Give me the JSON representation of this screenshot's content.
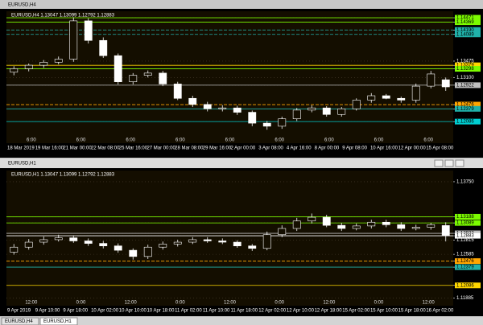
{
  "chart_data": [
    {
      "type": "candlestick",
      "window_title": "EURUSD,H4",
      "title": "EURUSD,H4 1.13047 1.13099 1.12792 1.12883",
      "open": [
        1.1322,
        1.133,
        1.1338,
        1.1345,
        1.1352,
        1.144,
        1.1395,
        1.136,
        1.13,
        1.1315,
        1.132,
        1.1295,
        1.1262,
        1.1248,
        1.1238,
        1.124,
        1.123,
        1.1205,
        1.1198,
        1.1215,
        1.1235,
        1.124,
        1.1225,
        1.1238,
        1.1258,
        1.1268,
        1.1262,
        1.1258,
        1.129,
        1.13047
      ],
      "high": [
        1.1336,
        1.1342,
        1.135,
        1.1358,
        1.1448,
        1.1446,
        1.1402,
        1.1365,
        1.132,
        1.1326,
        1.1325,
        1.13,
        1.1268,
        1.1254,
        1.1246,
        1.1245,
        1.1234,
        1.121,
        1.122,
        1.124,
        1.1246,
        1.1244,
        1.1242,
        1.1262,
        1.1274,
        1.1272,
        1.1266,
        1.1296,
        1.1325,
        1.13099
      ],
      "low": [
        1.1315,
        1.1324,
        1.1332,
        1.134,
        1.1346,
        1.1388,
        1.1355,
        1.1294,
        1.1294,
        1.131,
        1.129,
        1.1258,
        1.1242,
        1.1232,
        1.1232,
        1.1224,
        1.1198,
        1.119,
        1.1192,
        1.121,
        1.123,
        1.122,
        1.122,
        1.1234,
        1.1252,
        1.126,
        1.1252,
        1.1252,
        1.1285,
        1.12792
      ],
      "close": [
        1.133,
        1.1338,
        1.1345,
        1.1352,
        1.144,
        1.1395,
        1.136,
        1.13,
        1.1315,
        1.132,
        1.1295,
        1.1262,
        1.1248,
        1.1238,
        1.124,
        1.123,
        1.1205,
        1.1198,
        1.1215,
        1.1235,
        1.124,
        1.1225,
        1.1238,
        1.1258,
        1.1268,
        1.1262,
        1.1258,
        1.129,
        1.1318,
        1.12883
      ],
      "x_labels": [
        "18 Mar 2019",
        "19 Mar 16:00",
        "21 Mar 00:00",
        "22 Mar 08:00",
        "25 Mar 16:00",
        "27 Mar 00:00",
        "28 Mar 08:00",
        "29 Mar 16:00",
        "2 Apr 00:00",
        "3 Apr 08:00",
        "4 Apr 16:00",
        "8 Apr 00:00",
        "9 Apr 08:00",
        "10 Apr 16:00",
        "12 Apr 00:00",
        "15 Apr 08:00"
      ],
      "inner_labels": [
        "6:00",
        "6:00",
        "6:00",
        "6:00",
        "6:00",
        "6:00",
        "6:00",
        "6:00",
        "6:00"
      ],
      "ylim": [
        1.1159,
        1.1462
      ],
      "yticks": [
        1.14471,
        1.14369,
        {
          "value": 1.1419,
          "label": "1.14190"
        },
        1.14089,
        1.13475,
        1.13379,
        1.13298,
        {
          "value": 1.131,
          "label": "1.13100"
        },
        1.12922,
        1.12476,
        1.12379,
        1.12086
      ],
      "levels": [
        {
          "value": 1.14471,
          "color": "#7cfc00",
          "style": "solid"
        },
        {
          "value": 1.14369,
          "color": "#7cfc00",
          "style": "solid"
        },
        {
          "value": 1.1419,
          "color": "#20b2aa",
          "style": "dash"
        },
        {
          "value": 1.14089,
          "color": "#20b2aa",
          "style": "dash"
        },
        {
          "value": 1.13379,
          "color": "#ffd700",
          "style": "solid"
        },
        {
          "value": 1.13298,
          "color": "#7cfc00",
          "style": "solid"
        },
        {
          "value": 1.12922,
          "color": "#c0c0c0",
          "style": "solid"
        },
        {
          "value": 1.12476,
          "color": "#ffa500",
          "style": "dash"
        },
        {
          "value": 1.12379,
          "color": "#20b2aa",
          "style": "solid"
        },
        {
          "value": 1.12086,
          "color": "#00ced1",
          "style": "solid"
        }
      ],
      "grid": true
    },
    {
      "type": "candlestick",
      "window_title": "EURUSD,H1",
      "title": "EURUSD,H1 1.13047 1.13099 1.12792 1.12883",
      "open": [
        1.1262,
        1.127,
        1.1278,
        1.1282,
        1.1285,
        1.128,
        1.1276,
        1.1272,
        1.1265,
        1.1255,
        1.127,
        1.1275,
        1.1278,
        1.1282,
        1.128,
        1.1278,
        1.1272,
        1.1268,
        1.129,
        1.13,
        1.1312,
        1.1318,
        1.1305,
        1.13,
        1.1304,
        1.131,
        1.1306,
        1.13,
        1.1302,
        1.13047
      ],
      "high": [
        1.1275,
        1.1283,
        1.1287,
        1.129,
        1.1289,
        1.1284,
        1.128,
        1.1276,
        1.1268,
        1.1274,
        1.1279,
        1.1282,
        1.1286,
        1.1286,
        1.1284,
        1.1281,
        1.1275,
        1.1295,
        1.1305,
        1.1317,
        1.1324,
        1.1322,
        1.1309,
        1.1308,
        1.1314,
        1.1314,
        1.131,
        1.1306,
        1.1309,
        1.13099
      ],
      "low": [
        1.1258,
        1.1266,
        1.1274,
        1.1279,
        1.1277,
        1.1272,
        1.1268,
        1.1261,
        1.125,
        1.1251,
        1.1266,
        1.1271,
        1.1275,
        1.1277,
        1.1275,
        1.1269,
        1.1264,
        1.1265,
        1.1286,
        1.1296,
        1.1308,
        1.1302,
        1.1296,
        1.1297,
        1.13,
        1.1302,
        1.1296,
        1.1297,
        1.1298,
        1.12792
      ],
      "close": [
        1.127,
        1.1278,
        1.1282,
        1.1285,
        1.128,
        1.1276,
        1.1272,
        1.1265,
        1.1255,
        1.127,
        1.1275,
        1.1278,
        1.1282,
        1.128,
        1.1278,
        1.1272,
        1.1268,
        1.129,
        1.13,
        1.1312,
        1.1318,
        1.1305,
        1.13,
        1.1304,
        1.131,
        1.1306,
        1.13,
        1.1302,
        1.1306,
        1.12883
      ],
      "x_labels": [
        "9 Apr 2019",
        "9 Apr 10:00",
        "9 Apr 18:00",
        "10 Apr 02:00",
        "10 Apr 10:00",
        "10 Apr 18:00",
        "11 Apr 02:00",
        "11 Apr 10:00",
        "11 Apr 18:00",
        "12 Apr 02:00",
        "12 Apr 10:00",
        "12 Apr 18:00",
        "15 Apr 02:00",
        "15 Apr 10:00",
        "15 Apr 18:00",
        "16 Apr 02:00"
      ],
      "inner_labels": [
        "12:00",
        "0:00",
        "12:00",
        "0:00",
        "12:00",
        "0:00",
        "12:00",
        "0:00",
        "12:00"
      ],
      "ylim": [
        1.1176,
        1.1393
      ],
      "yticks": [
        {
          "value": 1.1375,
          "label": "1.13750"
        },
        1.13188,
        1.13089,
        1.12922,
        1.12883,
        1.12815,
        1.12585,
        1.12476,
        1.12379,
        1.12086,
        1.11885
      ],
      "levels": [
        {
          "value": 1.13188,
          "color": "#7cfc00",
          "style": "solid"
        },
        {
          "value": 1.13089,
          "color": "#7cfc00",
          "style": "solid"
        },
        {
          "value": 1.12922,
          "color": "#c0c0c0",
          "style": "solid"
        },
        {
          "value": 1.12883,
          "color": "#ffffff",
          "style": "solid"
        },
        {
          "value": 1.12476,
          "color": "#ffa500",
          "style": "dash"
        },
        {
          "value": 1.12379,
          "color": "#20b2aa",
          "style": "solid"
        },
        {
          "value": 1.12086,
          "color": "#ffd700",
          "style": "solid"
        }
      ],
      "grid": true
    }
  ],
  "tabs": [
    "EURUSD,H4",
    "EURUSD,H1"
  ]
}
